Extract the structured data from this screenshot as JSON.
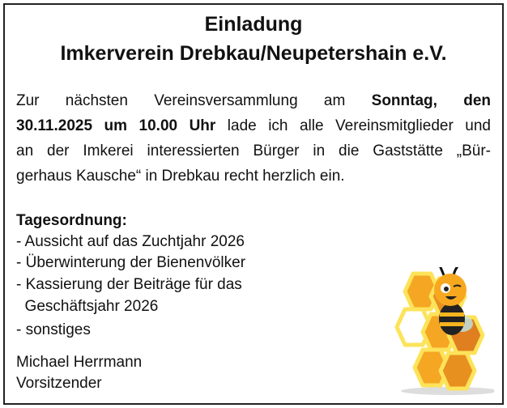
{
  "title": {
    "line1": "Einladung",
    "line2": "Imkerverein Drebkau/Neupetershain e.V."
  },
  "body": {
    "l1_pre": "Zur nächsten Vereinsversammlung am ",
    "l1_bold": "Sonntag, den",
    "l2_bold": "30.11.2025 um 10.00 Uhr",
    "l2_post": " lade ich alle Vereinsmitglieder und",
    "l3": "an der Imkerei interessierten Bürger in die Gaststätte „Bür-",
    "l4": "gerhaus Kausche“ in Drebkau recht herzlich ein."
  },
  "agenda": {
    "heading": "Tagesordnung:",
    "items": [
      "- Aussicht auf das Zuchtjahr 2026",
      "- Überwinterung der Bienenvölker",
      "- Kassierung der Beiträge für das",
      "  Geschäftsjahr 2026",
      "- sonstiges"
    ]
  },
  "signature": {
    "name": "Michael Herrmann",
    "role": "Vorsitzender"
  },
  "colors": {
    "honey": "#f5a623",
    "honey_dark": "#e07f1f",
    "honey_light": "#fde35a"
  },
  "icons": {
    "illustration": "bee-on-honeycomb-icon"
  }
}
